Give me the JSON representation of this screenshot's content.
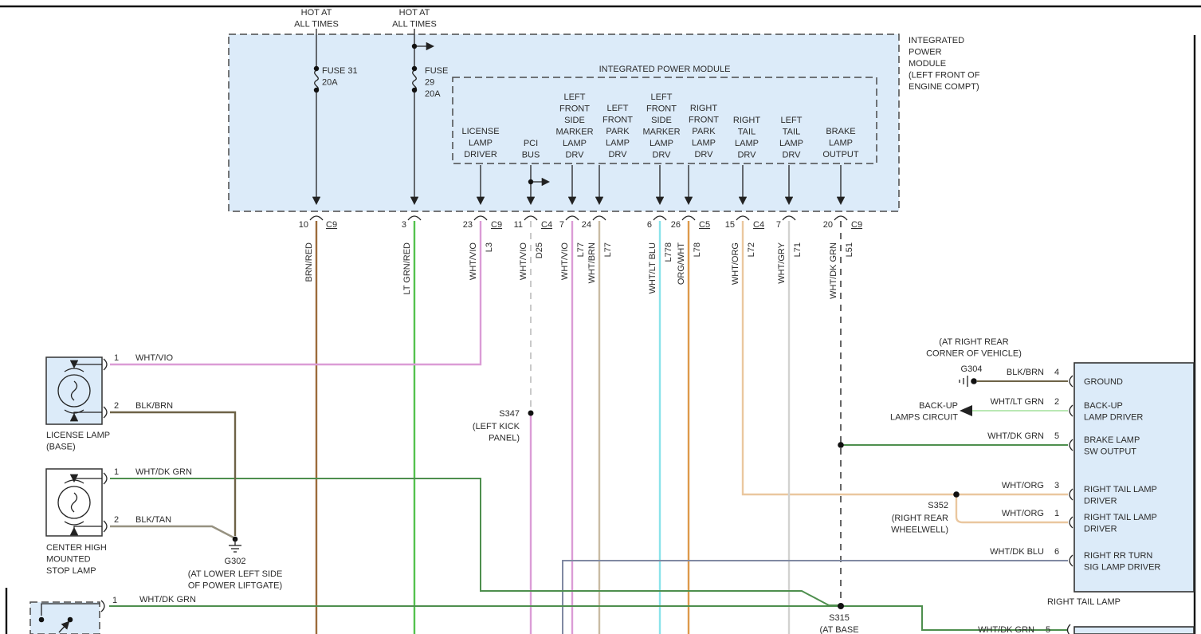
{
  "page": {
    "background": "#ffffff",
    "line_color": "#111111"
  },
  "feeds": [
    {
      "hot_lines": [
        "HOT AT",
        "ALL TIMES"
      ],
      "fuse_lines": [
        "FUSE 31",
        "20A"
      ],
      "pin": "10",
      "conn": "C9",
      "color_name": "BRN/RED"
    },
    {
      "hot_lines": [
        "HOT AT",
        "ALL TIMES"
      ],
      "fuse_lines": [
        "FUSE",
        "29",
        "20A"
      ],
      "pin": "3",
      "color_name": "LT GRN/RED"
    }
  ],
  "ipm": {
    "inner_title": "INTEGRATED POWER MODULE",
    "annotation_lines": [
      "INTEGRATED",
      "POWER",
      "MODULE",
      "(LEFT FRONT OF",
      "ENGINE COMPT)"
    ],
    "outputs": [
      {
        "label_lines": [
          "LICENSE",
          "LAMP",
          "DRIVER"
        ],
        "pin": "23",
        "conn": "C9",
        "color_name": "WHT/VIO",
        "circuit": "L3"
      },
      {
        "label_lines": [
          "PCI",
          "BUS"
        ],
        "pin": "11",
        "conn": "C4",
        "color_name": "WHT/VIO",
        "circuit": "D25"
      },
      {
        "label_lines": [
          "LEFT",
          "FRONT",
          "SIDE",
          "MARKER",
          "LAMP",
          "DRV"
        ],
        "pin": "7",
        "color_name": "WHT/VIO",
        "circuit": "L77"
      },
      {
        "label_lines": [
          "LEFT",
          "FRONT",
          "PARK",
          "LAMP",
          "DRV"
        ],
        "pin": "24",
        "color_name": "WHT/BRN",
        "circuit": "L77"
      },
      {
        "label_lines": [
          "LEFT",
          "FRONT",
          "SIDE",
          "MARKER",
          "LAMP",
          "DRV"
        ],
        "pin": "6",
        "color_name": "WHT/LT BLU",
        "circuit": "L778"
      },
      {
        "label_lines": [
          "RIGHT",
          "FRONT",
          "PARK",
          "LAMP",
          "DRV"
        ],
        "pin": "26",
        "conn": "C5",
        "color_name": "ORG/WHT",
        "circuit": "L78"
      },
      {
        "label_lines": [
          "RIGHT",
          "TAIL",
          "LAMP",
          "DRV"
        ],
        "pin": "15",
        "conn": "C4",
        "color_name": "WHT/ORG",
        "circuit": "L72"
      },
      {
        "label_lines": [
          "LEFT",
          "TAIL",
          "LAMP",
          "DRV"
        ],
        "pin": "7",
        "color_name": "WHT/GRY",
        "circuit": "L71"
      },
      {
        "label_lines": [
          "BRAKE",
          "LAMP",
          "OUTPUT"
        ],
        "pin": "20",
        "conn": "C9",
        "color_name": "WHT/DK GRN",
        "circuit": "L51"
      }
    ]
  },
  "license_lamp": {
    "caption_lines": [
      "LICENSE LAMP",
      "(BASE)"
    ],
    "pin1": "1",
    "pin1_wire": "WHT/VIO",
    "pin2": "2",
    "pin2_wire": "BLK/BRN"
  },
  "chmsl": {
    "caption_lines": [
      "CENTER HIGH",
      "MOUNTED",
      "STOP LAMP"
    ],
    "pin1": "1",
    "pin1_wire": "WHT/DK GRN",
    "pin2": "2",
    "pin2_wire": "BLK/TAN"
  },
  "liftgate_switch": {
    "pin1": "1",
    "pin1_wire": "WHT/DK GRN"
  },
  "grounds": {
    "g302": {
      "id": "G302",
      "loc_lines": [
        "(AT LOWER LEFT SIDE",
        "OF POWER LIFTGATE)"
      ]
    },
    "g304": {
      "id": "G304",
      "loc_lines": [
        "(AT RIGHT REAR",
        "CORNER OF VEHICLE)"
      ]
    }
  },
  "splices": {
    "s347": {
      "id": "S347",
      "loc_lines": [
        "(LEFT KICK",
        "PANEL)"
      ]
    },
    "s352": {
      "id": "S352",
      "loc_lines": [
        "(RIGHT REAR",
        "WHEELWELL)"
      ]
    },
    "s315": {
      "id": "S315",
      "loc_lines": [
        "(AT BASE"
      ]
    }
  },
  "backup_note_lines": [
    "BACK-UP",
    "LAMPS CIRCUIT"
  ],
  "right_tail_lamp": {
    "caption": "RIGHT TAIL LAMP",
    "rows": [
      {
        "wire": "BLK/BRN",
        "pin": "4",
        "label_lines": [
          "GROUND"
        ]
      },
      {
        "wire": "WHT/LT GRN",
        "pin": "2",
        "label_lines": [
          "BACK-UP",
          "LAMP DRIVER"
        ]
      },
      {
        "wire": "WHT/DK GRN",
        "pin": "5",
        "label_lines": [
          "BRAKE LAMP",
          "SW OUTPUT"
        ]
      },
      {
        "wire": "WHT/ORG",
        "pin": "3",
        "label_lines": [
          "RIGHT TAIL LAMP",
          "DRIVER"
        ]
      },
      {
        "wire": "WHT/ORG",
        "pin": "1",
        "label_lines": [
          "RIGHT TAIL LAMP",
          "DRIVER"
        ]
      },
      {
        "wire": "WHT/DK BLU",
        "pin": "6",
        "label_lines": [
          "RIGHT RR TURN",
          "SIG LAMP DRIVER"
        ]
      }
    ]
  },
  "bottom_lamp": {
    "wire": "WHT/DK GRN",
    "pin": "5"
  },
  "wire_palette": {
    "BRN/RED": "#9c6b3a",
    "LT GRN/RED": "#54c24e",
    "WHT/VIO": "#db9cd6",
    "WHT/BRN": "#c9bba3",
    "WHT/LT BLU": "#8ae3ea",
    "ORG/WHT": "#dd9a4b",
    "WHT/ORG": "#eac79f",
    "WHT/GRY": "#d2d2d0",
    "WHT/DK GRN": "#4e8f4e",
    "WHT/LT GRN": "#b9e8b4",
    "BLK/BRN": "#6e6347",
    "BLK/TAN": "#969180",
    "WHT/DK BLU": "#8089a2",
    "PCI_BUS_DASHED": "#c9c9c9",
    "BRAKE_DASHED": "#666666",
    "module_fill": "#dcebf9"
  }
}
